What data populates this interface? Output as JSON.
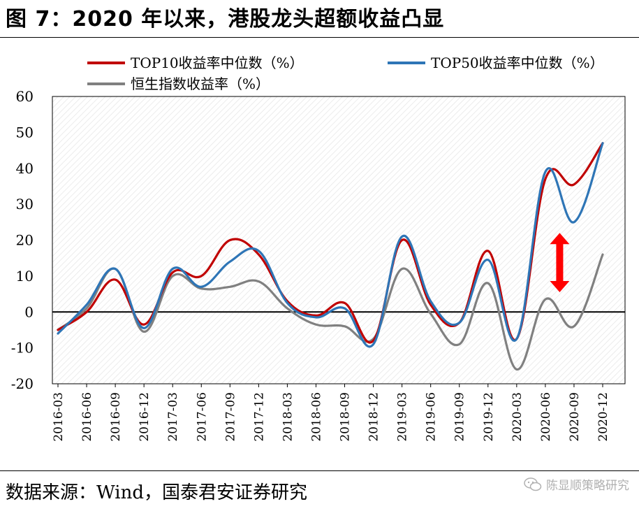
{
  "figure": {
    "title": "图 7：2020 年以来，港股龙头超额收益凸显",
    "source": "数据来源：Wind，国泰君安证券研究",
    "watermark": "陈显顺策略研究"
  },
  "colors": {
    "top10": "#c00000",
    "top50": "#2e75b6",
    "hsi": "#808080",
    "arrow": "#ff0000"
  },
  "chart_data": {
    "type": "line",
    "categories": [
      "2016-03",
      "2016-06",
      "2016-09",
      "2016-12",
      "2017-03",
      "2017-06",
      "2017-09",
      "2017-12",
      "2018-03",
      "2018-06",
      "2018-09",
      "2018-12",
      "2019-03",
      "2019-06",
      "2019-09",
      "2019-12",
      "2020-03",
      "2020-06",
      "2020-09",
      "2020-12"
    ],
    "ylim": [
      -20,
      60
    ],
    "yticks": [
      -20,
      -10,
      0,
      10,
      20,
      30,
      40,
      50,
      60
    ],
    "ytick_labels": [
      "-20",
      "-10",
      "0",
      "10",
      "20",
      "30",
      "40",
      "50",
      "60"
    ],
    "grid": false,
    "legend_position": "top",
    "series": [
      {
        "name": "TOP10收益率中位数（%）",
        "values": [
          -5,
          0,
          9,
          -3.5,
          11,
          10,
          20,
          16,
          3,
          -1,
          2.5,
          -8,
          20,
          2,
          -3,
          17,
          -7.5,
          37,
          35.5,
          47
        ]
      },
      {
        "name": "TOP50收益率中位数（%）",
        "values": [
          -6,
          2,
          12,
          -4.5,
          12,
          7,
          14,
          17,
          2.5,
          -1.5,
          1,
          -9,
          21,
          3,
          -3,
          14.5,
          -7.5,
          39,
          25,
          47
        ]
      },
      {
        "name": "恒生指数收益率（%）",
        "values": [
          -5,
          1,
          12,
          -5.5,
          10,
          6.5,
          7,
          8.5,
          1,
          -3.5,
          -4,
          -7.5,
          12,
          -0.5,
          -9,
          8,
          -16,
          3.5,
          -4,
          16
        ]
      }
    ]
  }
}
